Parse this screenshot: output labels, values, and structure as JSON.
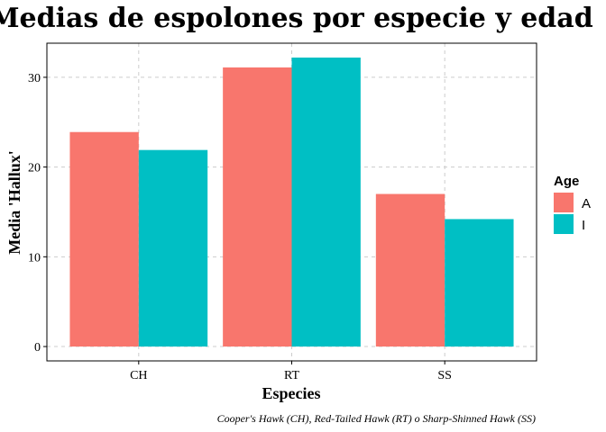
{
  "chart_data": {
    "type": "bar",
    "title": "Medias de espolones por especie y edad",
    "xlabel": "Especies",
    "ylabel": "Media 'Hallux'",
    "caption": "Cooper's Hawk (CH), Red-Tailed Hawk (RT) o Sharp-Shinned Hawk (SS)",
    "categories": [
      "CH",
      "RT",
      "SS"
    ],
    "series": [
      {
        "name": "A",
        "color": "#F8766D",
        "values": [
          23.9,
          31.1,
          17.0
        ]
      },
      {
        "name": "I",
        "color": "#00BFC4",
        "values": [
          21.9,
          32.2,
          14.2
        ]
      }
    ],
    "ylim": [
      -1.6,
      33.8
    ],
    "yticks": [
      0,
      10,
      20,
      30
    ],
    "grid": true,
    "legend": {
      "title": "Age",
      "placement": "right"
    }
  }
}
